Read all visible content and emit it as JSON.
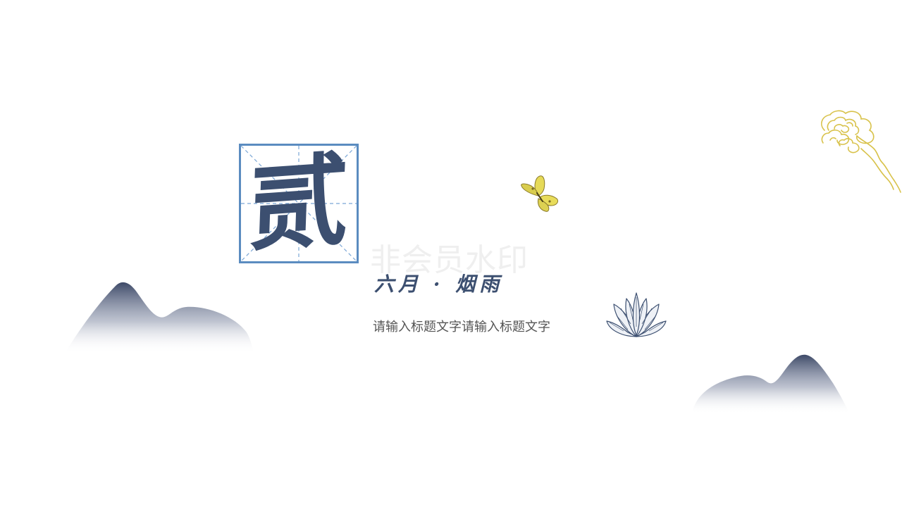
{
  "slide": {
    "chapter_character": "贰",
    "watermark": "非会员水印",
    "subtitle": "六月 · 烟雨",
    "body_text": "请输入标题文字请输入标题文字"
  },
  "colors": {
    "background": "#ffffff",
    "ink_blue": "#3c4f70",
    "box_border": "#5b8cc0",
    "box_guides": "#7aa6d6",
    "cloud_gold": "#d8c24a",
    "butterfly_yellow": "#e8dc5a",
    "body_text": "#555555",
    "watermark": "#efefef"
  },
  "decorations": {
    "left_mountain": "mountain-icon",
    "right_mountain": "mountain-icon",
    "cloud": "auspicious-cloud-icon",
    "butterfly": "butterfly-icon",
    "lotus": "lotus-icon",
    "character_frame": "tianzige-grid-icon"
  }
}
